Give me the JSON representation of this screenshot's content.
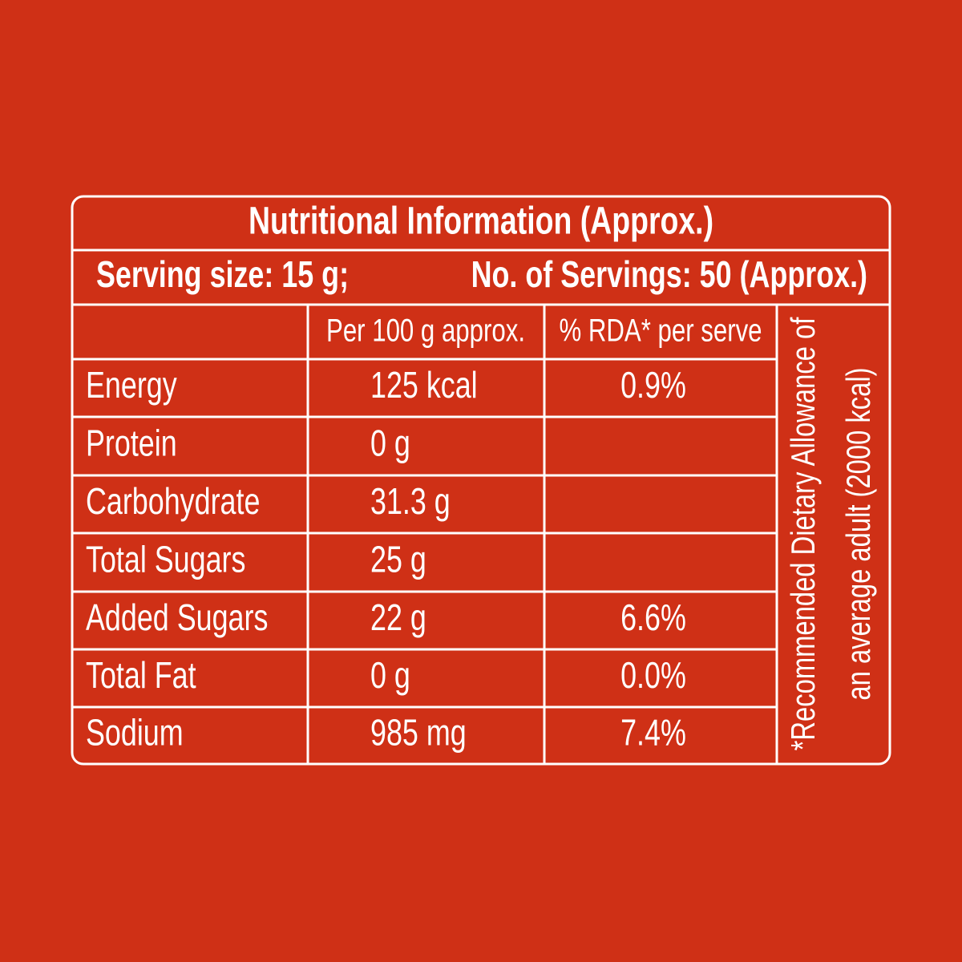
{
  "title": "Nutritional Information (Approx.)",
  "serving": {
    "size": "Serving size: 15 g;",
    "count": "No. of Servings: 50 (Approx.)"
  },
  "table": {
    "header": [
      null,
      "Per 100 g approx.",
      "% RDA* per serve"
    ],
    "rows": [
      [
        "Energy",
        "125 kcal",
        "0.9%"
      ],
      [
        "Protein",
        "0 g",
        null
      ],
      [
        "Carbohydrate",
        "31.3 g",
        null
      ],
      [
        "Total Sugars",
        "25 g",
        null
      ],
      [
        "Added Sugars",
        "22 g",
        "6.6%"
      ],
      [
        "Total Fat",
        "0 g",
        "0.0%"
      ],
      [
        "Sodium",
        "985 mg",
        "7.4%"
      ]
    ]
  },
  "footnote": [
    "*Recommended Dietary Allowance of",
    "an average adult (2000 kcal)"
  ]
}
